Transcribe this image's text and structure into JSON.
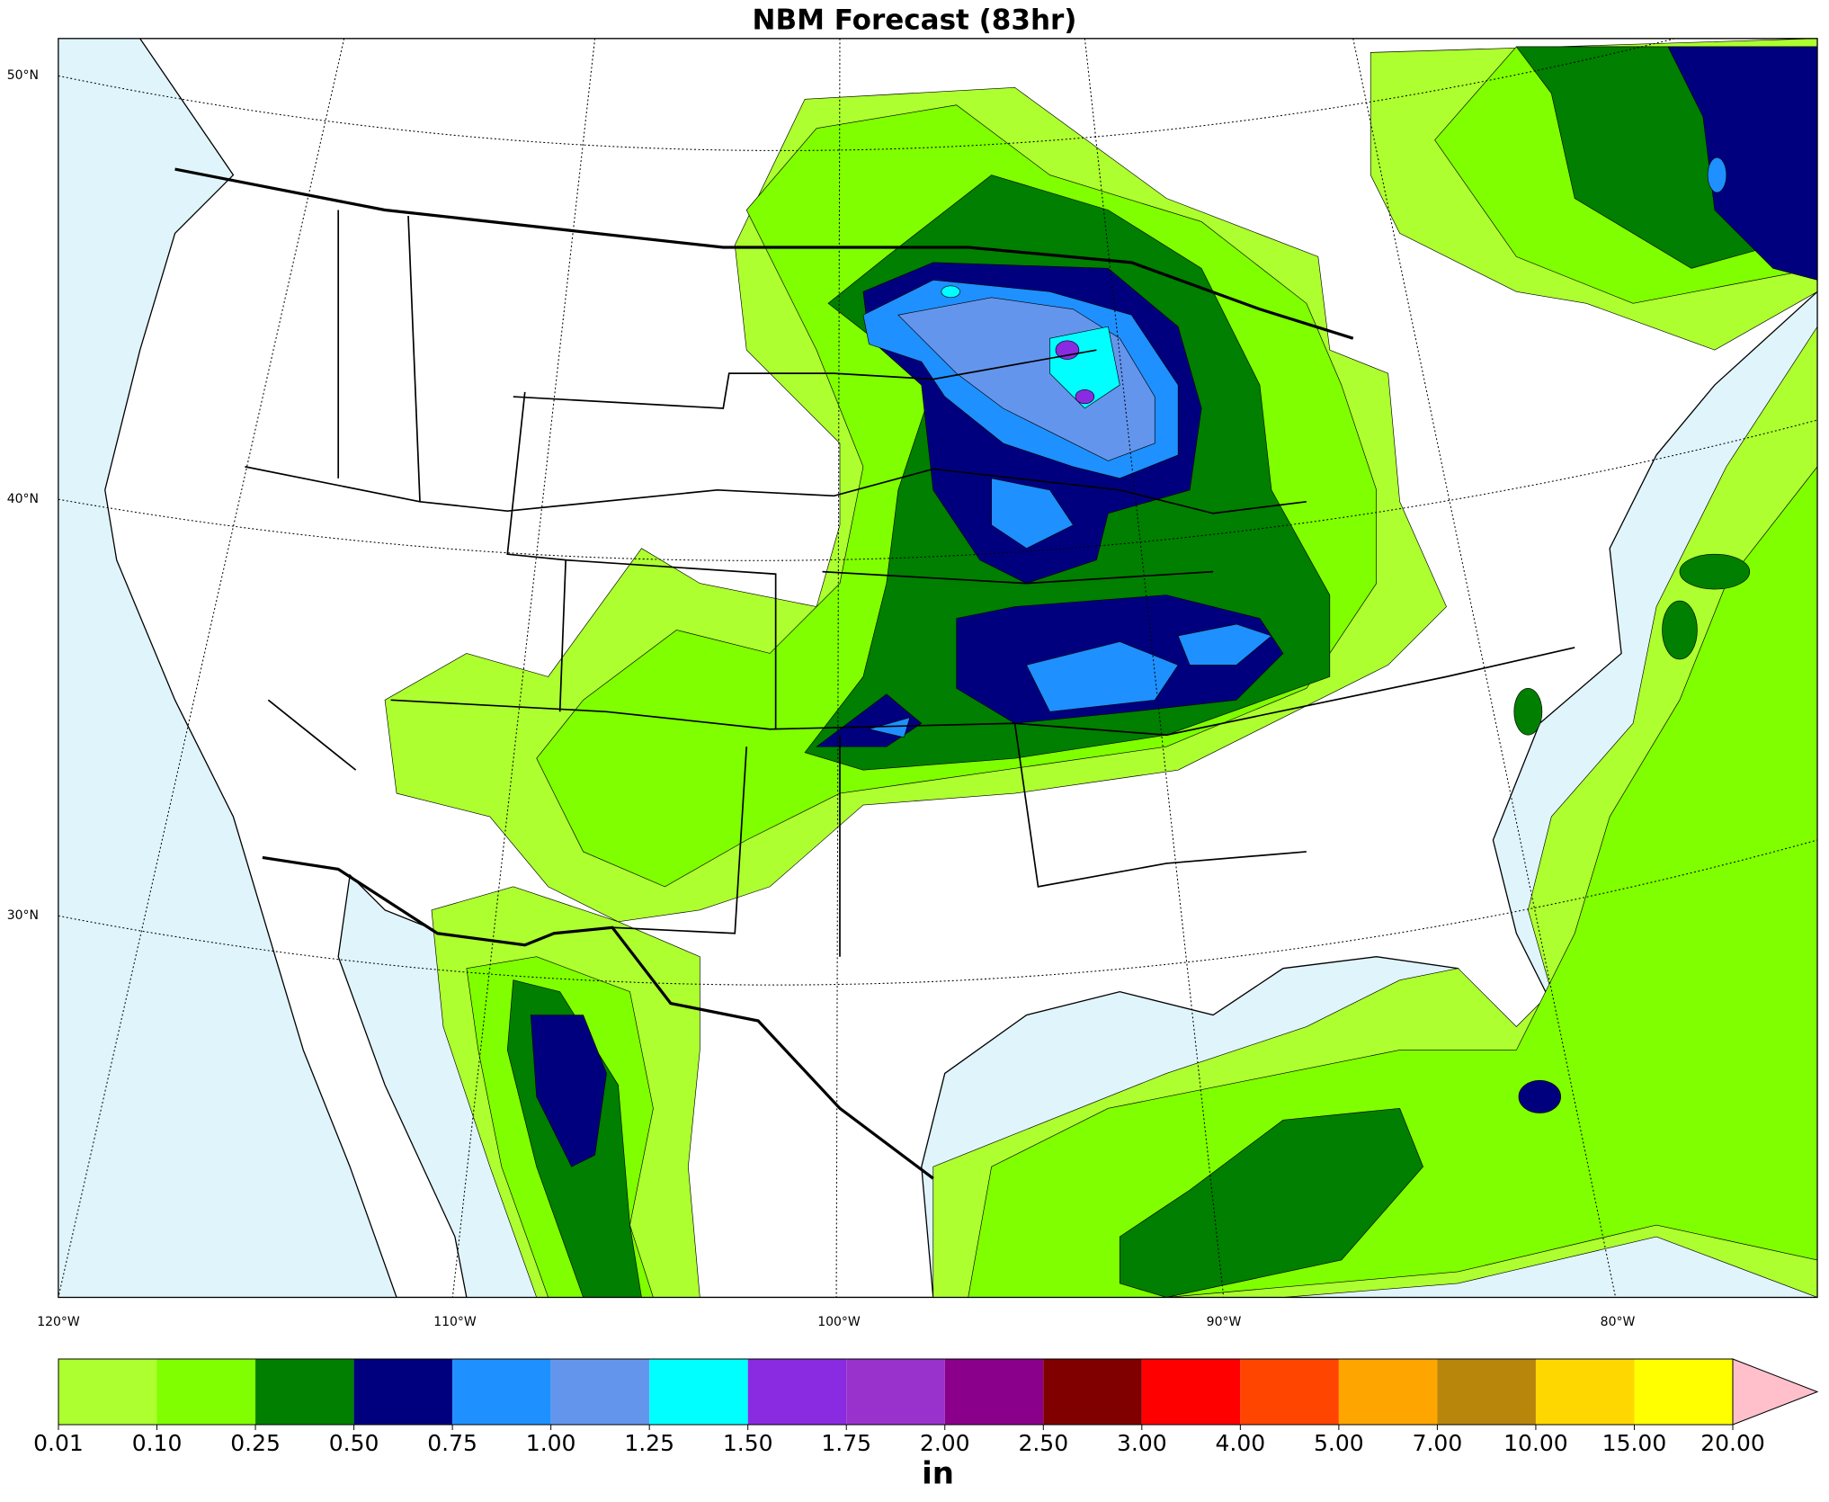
{
  "title": "NBM Forecast (83hr)",
  "map": {
    "lat_labels": [
      "50°N",
      "40°N",
      "30°N"
    ],
    "lon_labels": [
      "120°W",
      "110°W",
      "100°W",
      "90°W",
      "80°W"
    ]
  },
  "colorbar": {
    "label": "in",
    "levels": [
      0.01,
      {
        "value": 0.1,
        "label": "0.10"
      },
      0.25,
      {
        "value": 0.5,
        "label": "0.50"
      },
      0.75,
      {
        "value": 1,
        "label": "1.00"
      },
      1.25,
      {
        "value": 1.5,
        "label": "1.50"
      },
      1.75,
      {
        "value": 2,
        "label": "2.00"
      },
      {
        "value": 2.5,
        "label": "2.50"
      },
      {
        "value": 3,
        "label": "3.00"
      },
      {
        "value": 4,
        "label": "4.00"
      },
      {
        "value": 5,
        "label": "5.00"
      },
      {
        "value": 7,
        "label": "7.00"
      },
      {
        "value": 10,
        "label": "10.00"
      },
      {
        "value": 15,
        "label": "15.00"
      },
      {
        "value": 20,
        "label": "20.00"
      }
    ],
    "colors": [
      "#adff2f",
      "#7fff00",
      "#007f00",
      "#00007f",
      "#1e90ff",
      "#6495ed",
      "#00ffff",
      "#8a2be2",
      "#9932cc",
      "#8b008b",
      "#800000",
      "#ff0000",
      "#ff4500",
      "#ffa500",
      "#b8860b",
      "#ffd700",
      "#ffff00"
    ],
    "over_color": "#ffc0cb"
  }
}
